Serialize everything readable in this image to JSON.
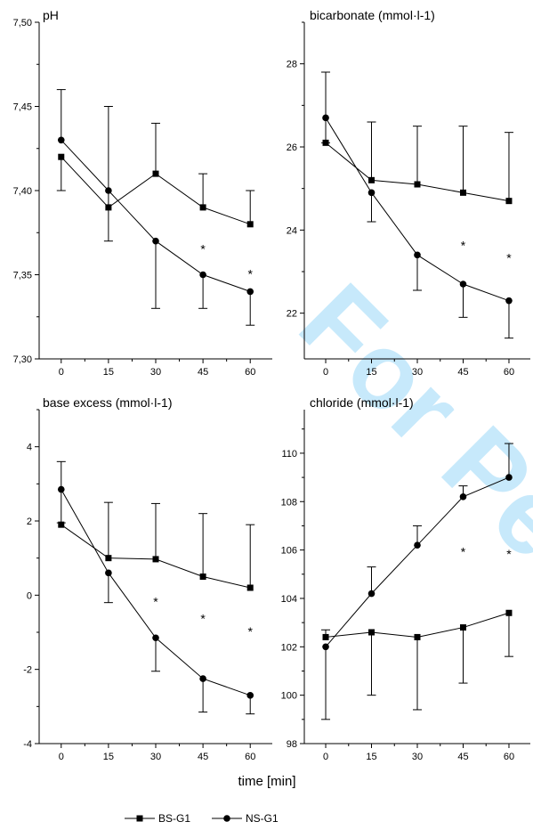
{
  "watermark": "For Peer",
  "xlabel": "time [min]",
  "colors": {
    "watermark": "#c7e9fb",
    "line": "#000000"
  },
  "legend": [
    {
      "label": "BS-G1",
      "marker": "square"
    },
    {
      "label": "NS-G1",
      "marker": "circle"
    }
  ],
  "chart_data": [
    {
      "type": "line",
      "title": "pH",
      "x": [
        0,
        15,
        30,
        45,
        60
      ],
      "xticks": [
        "0",
        "15",
        "30",
        "45",
        "60"
      ],
      "ylim": [
        7.3,
        7.5
      ],
      "yticks": [
        7.3,
        7.35,
        7.4,
        7.45,
        7.5
      ],
      "yticklabels": [
        "7,30",
        "7,35",
        "7,40",
        "7,45",
        "7,50"
      ],
      "series": [
        {
          "name": "BS-G1",
          "marker": "square",
          "values": [
            7.42,
            7.39,
            7.41,
            7.39,
            7.38
          ],
          "err_up": [
            null,
            0.06,
            0.03,
            0.02,
            0.02
          ],
          "err_down": [
            0.02,
            0.02,
            null,
            null,
            null
          ]
        },
        {
          "name": "NS-G1",
          "marker": "circle",
          "values": [
            7.43,
            7.4,
            7.37,
            7.35,
            7.34
          ],
          "err_up": [
            0.03,
            null,
            null,
            null,
            null
          ],
          "err_down": [
            null,
            null,
            0.04,
            0.02,
            0.02
          ]
        }
      ],
      "stars": [
        {
          "x": 45,
          "y": 7.367,
          "text": "*"
        },
        {
          "x": 60,
          "y": 7.352,
          "text": "*"
        }
      ]
    },
    {
      "type": "line",
      "title": "bicarbonate (mmol·l-1)",
      "x": [
        0,
        15,
        30,
        45,
        60
      ],
      "xticks": [
        "0",
        "15",
        "30",
        "45",
        "60"
      ],
      "ylim": [
        20.9,
        29.0
      ],
      "yticks": [
        22,
        24,
        26,
        28
      ],
      "yticklabels": [
        "22",
        "24",
        "26",
        "28"
      ],
      "series": [
        {
          "name": "BS-G1",
          "marker": "square",
          "values": [
            26.1,
            25.2,
            25.1,
            24.9,
            24.7
          ],
          "err_up": [
            null,
            1.4,
            1.4,
            1.6,
            1.65
          ],
          "err_down": [
            null,
            null,
            null,
            null,
            null
          ]
        },
        {
          "name": "NS-G1",
          "marker": "circle",
          "values": [
            26.7,
            24.9,
            23.4,
            22.7,
            22.3
          ],
          "err_up": [
            1.1,
            null,
            null,
            null,
            null
          ],
          "err_down": [
            0.6,
            0.7,
            0.85,
            0.8,
            0.9
          ]
        }
      ],
      "stars": [
        {
          "x": 45,
          "y": 23.7,
          "text": "*"
        },
        {
          "x": 60,
          "y": 23.4,
          "text": "*"
        }
      ]
    },
    {
      "type": "line",
      "title": "base excess (mmol·l-1)",
      "x": [
        0,
        15,
        30,
        45,
        60
      ],
      "xticks": [
        "0",
        "15",
        "30",
        "45",
        "60"
      ],
      "ylim": [
        -4,
        5
      ],
      "yticks": [
        -4,
        -2,
        0,
        2,
        4
      ],
      "yticklabels": [
        "-4",
        "-2",
        "0",
        "2",
        "4"
      ],
      "series": [
        {
          "name": "BS-G1",
          "marker": "square",
          "values": [
            1.9,
            1.0,
            0.97,
            0.5,
            0.2
          ],
          "err_up": [
            null,
            1.5,
            1.5,
            1.7,
            1.7
          ],
          "err_down": [
            null,
            null,
            null,
            null,
            null
          ]
        },
        {
          "name": "NS-G1",
          "marker": "circle",
          "values": [
            2.85,
            0.6,
            -1.15,
            -2.25,
            -2.7
          ],
          "err_up": [
            0.75,
            null,
            null,
            null,
            null
          ],
          "err_down": [
            0.9,
            0.8,
            0.9,
            0.9,
            0.5
          ]
        }
      ],
      "stars": [
        {
          "x": 30,
          "y": -0.1,
          "text": "*"
        },
        {
          "x": 45,
          "y": -0.55,
          "text": "*"
        },
        {
          "x": 60,
          "y": -0.9,
          "text": "*"
        }
      ]
    },
    {
      "type": "line",
      "title": "chloride (mmol·l-1)",
      "x": [
        0,
        15,
        30,
        45,
        60
      ],
      "xticks": [
        "0",
        "15",
        "30",
        "45",
        "60"
      ],
      "ylim": [
        98,
        111.8
      ],
      "yticks": [
        98,
        100,
        102,
        104,
        106,
        108,
        110
      ],
      "yticklabels": [
        "98",
        "100",
        "102",
        "104",
        "106",
        "108",
        "110"
      ],
      "series": [
        {
          "name": "BS-G1",
          "marker": "square",
          "values": [
            102.4,
            102.6,
            102.4,
            102.8,
            103.4
          ],
          "err_up": [
            0.3,
            null,
            null,
            null,
            null
          ],
          "err_down": [
            null,
            2.6,
            3.0,
            2.3,
            1.8
          ]
        },
        {
          "name": "NS-G1",
          "marker": "circle",
          "values": [
            102.0,
            104.2,
            106.2,
            108.2,
            109.0
          ],
          "err_up": [
            null,
            1.1,
            0.8,
            0.45,
            1.4
          ],
          "err_down": [
            3.0,
            null,
            null,
            null,
            null
          ]
        }
      ],
      "stars": [
        {
          "x": 45,
          "y": 106.05,
          "text": "*"
        },
        {
          "x": 60,
          "y": 105.95,
          "text": "*"
        }
      ]
    }
  ]
}
